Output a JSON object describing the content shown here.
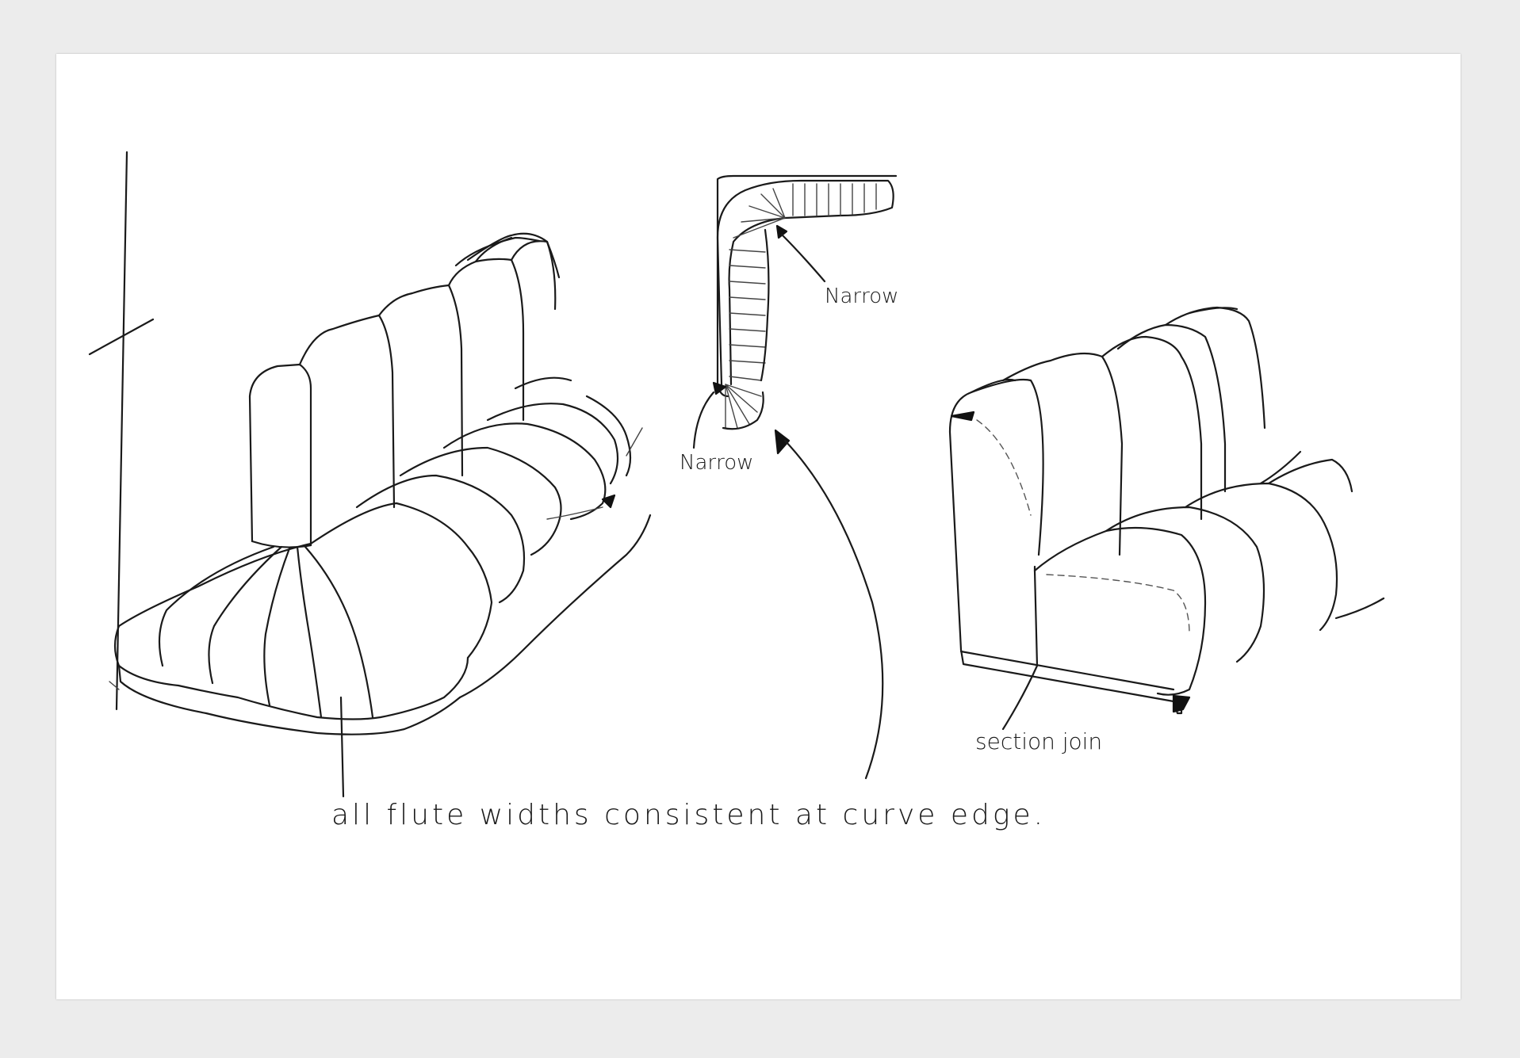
{
  "annotations": {
    "narrow_top": "Narrow",
    "narrow_bottom": "Narrow",
    "section_join": "section join",
    "flute_note": "all flute widths consistent at curve edge."
  }
}
